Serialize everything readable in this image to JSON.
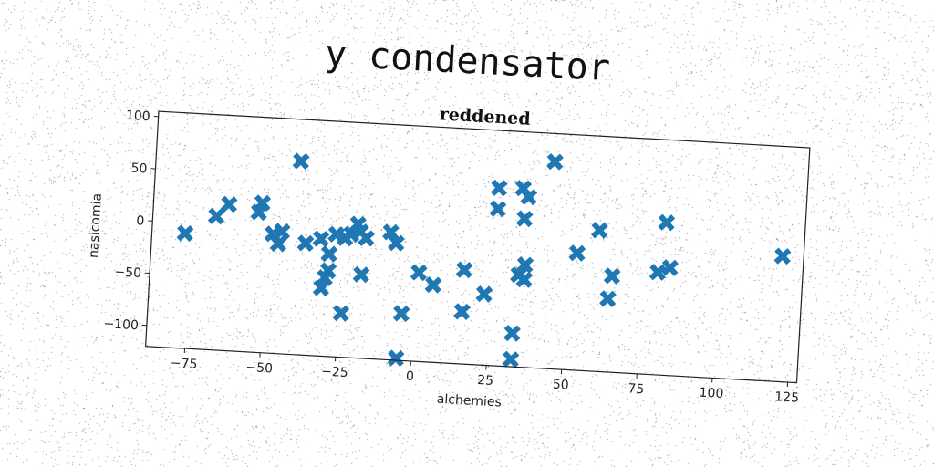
{
  "figure": {
    "suptitle": "y condensator"
  },
  "colors": {
    "marker": "#1f77b4",
    "background": "#ffffff",
    "axes": "#222222"
  },
  "chart_data": {
    "type": "scatter",
    "title": "reddened",
    "xlabel": "alchemies",
    "ylabel": "nasicomia",
    "xlim": [
      -88,
      128
    ],
    "ylim": [
      -120,
      105
    ],
    "xticks": [
      -75,
      -50,
      -25,
      0,
      25,
      50,
      75,
      100,
      125
    ],
    "xtick_labels": [
      "−75",
      "−50",
      "−25",
      "0",
      "25",
      "50",
      "75",
      "100",
      "125"
    ],
    "yticks": [
      100,
      50,
      0,
      -50,
      -100
    ],
    "ytick_labels": [
      "100",
      "50",
      "0",
      "−50",
      "−100"
    ],
    "marker": "X",
    "grid": false,
    "series": [
      {
        "points": [
          [
            -77,
            -10
          ],
          [
            -67,
            8
          ],
          [
            -63,
            20
          ],
          [
            -53,
            14
          ],
          [
            -52,
            23
          ],
          [
            -48,
            -6
          ],
          [
            -46,
            -15
          ],
          [
            -45,
            -3
          ],
          [
            -40,
            65
          ],
          [
            -37,
            -13
          ],
          [
            -32,
            -8
          ],
          [
            -31,
            -55
          ],
          [
            -30,
            -45
          ],
          [
            -29,
            -38
          ],
          [
            -29,
            -22
          ],
          [
            -27,
            -3
          ],
          [
            -24,
            -6
          ],
          [
            -24,
            -78
          ],
          [
            -22,
            -2
          ],
          [
            -20,
            8
          ],
          [
            -19,
            1
          ],
          [
            -18,
            -40
          ],
          [
            -17,
            -5
          ],
          [
            -9,
            2
          ],
          [
            -7,
            -8
          ],
          [
            -5,
            -118
          ],
          [
            -4,
            -75
          ],
          [
            1,
            -35
          ],
          [
            6,
            -46
          ],
          [
            16,
            -70
          ],
          [
            16,
            -30
          ],
          [
            23,
            -52
          ],
          [
            26,
            50
          ],
          [
            26,
            30
          ],
          [
            33,
            -88
          ],
          [
            33,
            -113
          ],
          [
            34,
            -32
          ],
          [
            34,
            51
          ],
          [
            35,
            22
          ],
          [
            36,
            43
          ],
          [
            36,
            -22
          ],
          [
            36,
            -36
          ],
          [
            44,
            78
          ],
          [
            53,
            -8
          ],
          [
            60,
            15
          ],
          [
            64,
            -50
          ],
          [
            65,
            -28
          ],
          [
            80,
            -22
          ],
          [
            82,
            26
          ],
          [
            84,
            -17
          ],
          [
            121,
            0
          ]
        ]
      }
    ]
  }
}
